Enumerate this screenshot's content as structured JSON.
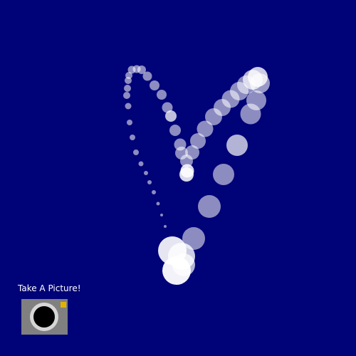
{
  "scene": {
    "background_color": "#000277",
    "particle_color": "#ffffff"
  },
  "snapshot": {
    "label": "Take A Picture!",
    "icon": "camera-icon",
    "button_color": "#808080",
    "lens_ring_color": "#d6d6d6",
    "lens_color": "#000000",
    "flash_color": "#e0b300"
  }
}
